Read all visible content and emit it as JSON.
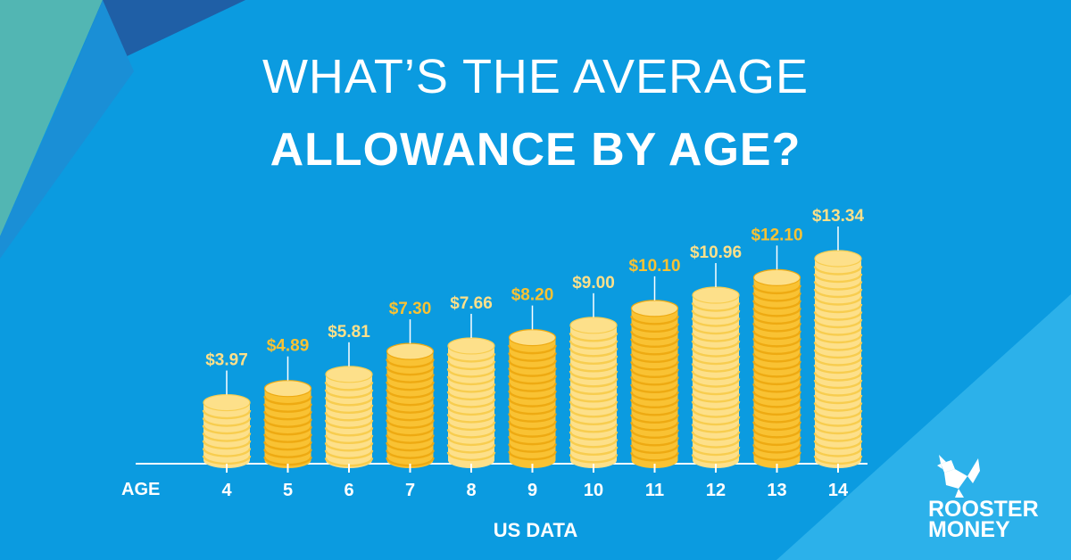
{
  "title": {
    "line1": "WHAT’S THE AVERAGE",
    "line2": "ALLOWANCE BY AGE?"
  },
  "axis_word": "AGE",
  "logo": {
    "line1": "ROOSTER",
    "line2": "MONEY"
  },
  "colors": {
    "background": "#0b9be0",
    "light_coin": "#fde08a",
    "light_coin_edge": "#f8cd4f",
    "dark_coin": "#f9c233",
    "dark_coin_edge": "#eeaa12",
    "label_light": "#fde08a",
    "label_dark": "#f9c233"
  },
  "chart_data": {
    "type": "bar",
    "xlabel": "US DATA",
    "ylabel": "",
    "categories": [
      "4",
      "5",
      "6",
      "7",
      "8",
      "9",
      "10",
      "11",
      "12",
      "13",
      "14"
    ],
    "values": [
      3.97,
      4.89,
      5.81,
      7.3,
      7.66,
      8.2,
      9.0,
      10.1,
      10.96,
      12.1,
      13.34
    ],
    "labels": [
      "$3.97",
      "$4.89",
      "$5.81",
      "$7.30",
      "$7.66",
      "$8.20",
      "$9.00",
      "$10.10",
      "$10.96",
      "$12.10",
      "$13.34"
    ],
    "styles": [
      "light",
      "dark",
      "light",
      "dark",
      "light",
      "dark",
      "light",
      "dark",
      "light",
      "dark",
      "light"
    ],
    "ylim": [
      0,
      14
    ],
    "grid": false
  }
}
